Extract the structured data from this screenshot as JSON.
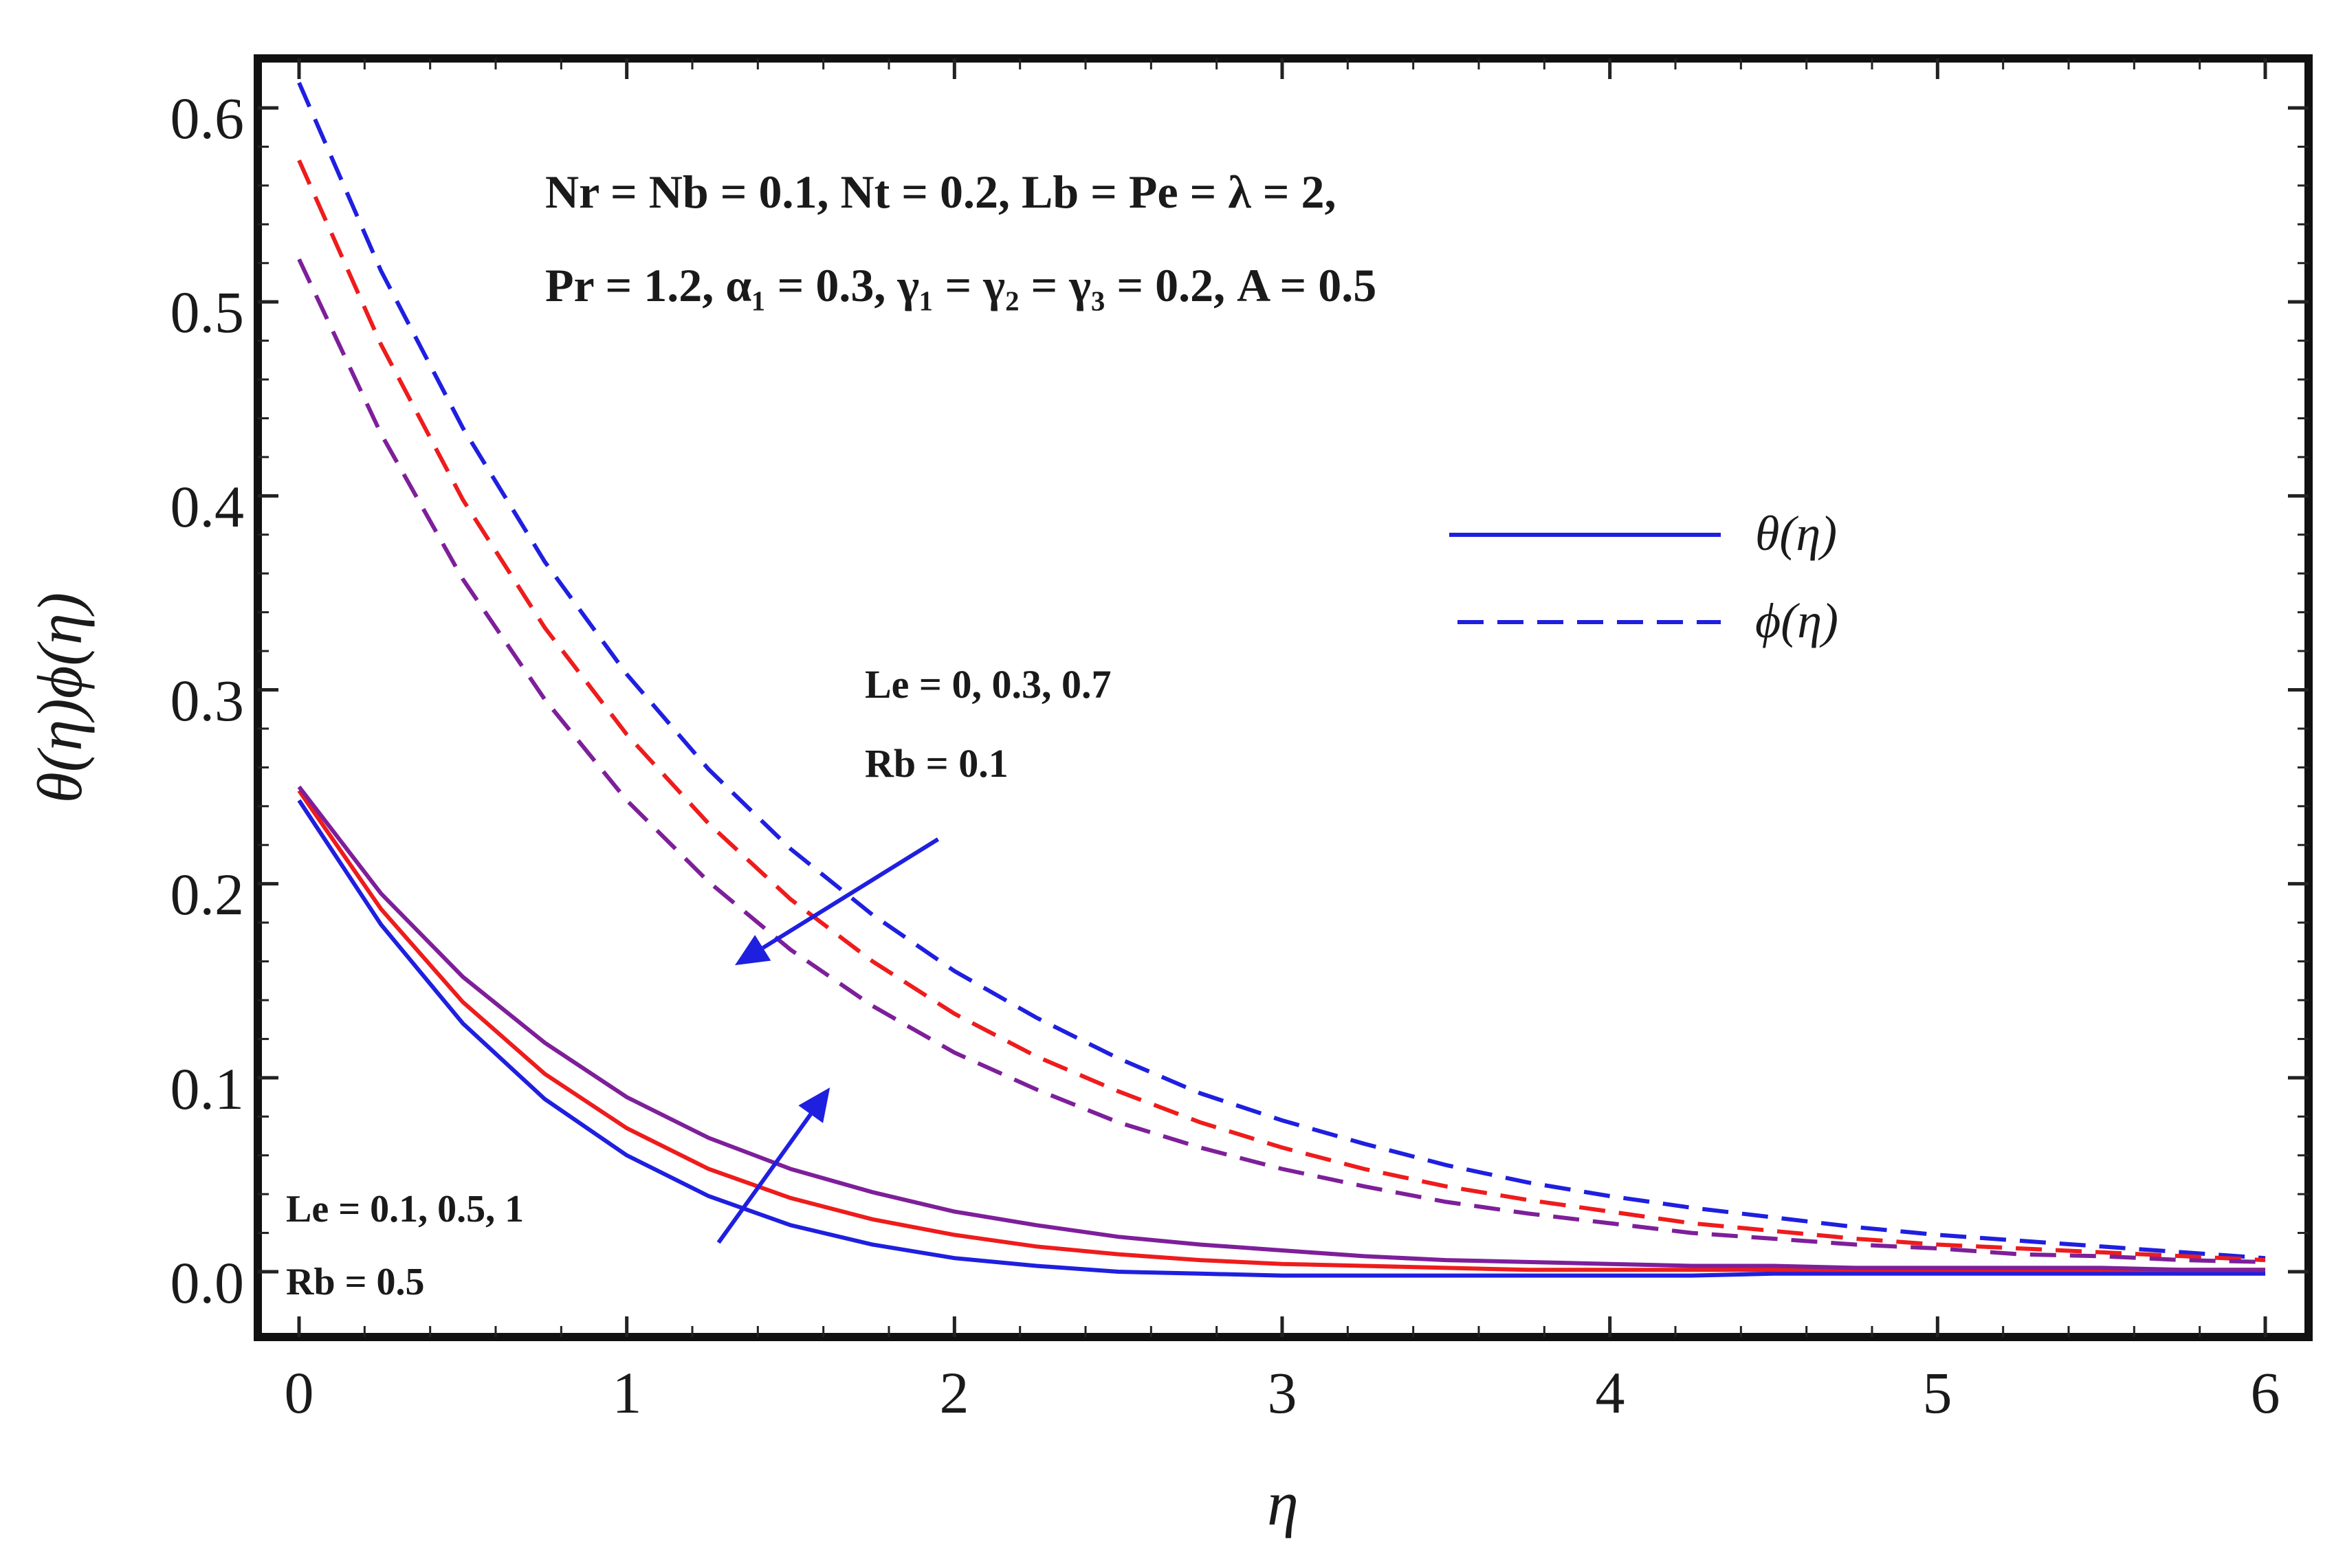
{
  "chart_data": {
    "type": "line",
    "title": "",
    "xlabel": "η",
    "ylabel": "θ(η)ϕ(η)",
    "xlim": [
      0,
      6
    ],
    "ylim": [
      -0.017,
      0.633
    ],
    "xticks": [
      0,
      1,
      2,
      3,
      4,
      5,
      6
    ],
    "xtick_labels": [
      "0",
      "1",
      "2",
      "3",
      "4",
      "5",
      "6"
    ],
    "yticks": [
      0.0,
      0.1,
      0.2,
      0.3,
      0.4,
      0.5,
      0.6
    ],
    "ytick_labels": [
      "0.0",
      "0.1",
      "0.2",
      "0.3",
      "0.4",
      "0.5",
      "0.6"
    ],
    "grid": false,
    "legend_position": "top-right",
    "legend": [
      {
        "label": "θ(η)",
        "style": "solid",
        "color": "#1f1fe0"
      },
      {
        "label": "ϕ(η)",
        "style": "dashed",
        "color": "#1f1fe0"
      }
    ],
    "x": [
      0,
      0.25,
      0.5,
      0.75,
      1,
      1.25,
      1.5,
      1.75,
      2,
      2.25,
      2.5,
      2.75,
      3,
      3.25,
      3.5,
      3.75,
      4,
      4.25,
      4.5,
      4.75,
      5,
      5.25,
      5.5,
      5.75,
      6
    ],
    "series": [
      {
        "name": "θ(η), Le = 0.1, Rb = 0.5",
        "group": "theta",
        "style": "solid",
        "color": "#1f1fe0",
        "values": [
          0.243,
          0.179,
          0.128,
          0.089,
          0.06,
          0.039,
          0.024,
          0.014,
          0.007,
          0.003,
          0.0,
          -0.001,
          -0.002,
          -0.002,
          -0.002,
          -0.002,
          -0.002,
          -0.002,
          -0.001,
          -0.001,
          -0.001,
          -0.001,
          -0.001,
          -0.001,
          -0.001
        ]
      },
      {
        "name": "θ(η), Le = 0.5, Rb = 0.5",
        "group": "theta",
        "style": "solid",
        "color": "#ee1c1c",
        "values": [
          0.248,
          0.187,
          0.139,
          0.102,
          0.074,
          0.053,
          0.038,
          0.027,
          0.019,
          0.013,
          0.009,
          0.006,
          0.004,
          0.003,
          0.002,
          0.001,
          0.001,
          0.001,
          0.001,
          0.001,
          0.001,
          0.001,
          0.001,
          0.001,
          0.001
        ]
      },
      {
        "name": "θ(η), Le = 1, Rb = 0.5",
        "group": "theta",
        "style": "solid",
        "color": "#7e1f9a",
        "values": [
          0.25,
          0.195,
          0.152,
          0.118,
          0.09,
          0.069,
          0.053,
          0.041,
          0.031,
          0.024,
          0.018,
          0.014,
          0.011,
          0.008,
          0.006,
          0.005,
          0.004,
          0.003,
          0.003,
          0.002,
          0.002,
          0.002,
          0.002,
          0.001,
          0.001
        ]
      },
      {
        "name": "ϕ(η), Le = 0, Rb = 0.1",
        "group": "phi",
        "style": "dashed",
        "color": "#1f1fe0",
        "values": [
          0.613,
          0.516,
          0.435,
          0.366,
          0.308,
          0.259,
          0.218,
          0.184,
          0.155,
          0.131,
          0.11,
          0.092,
          0.078,
          0.066,
          0.055,
          0.046,
          0.039,
          0.033,
          0.028,
          0.023,
          0.019,
          0.016,
          0.013,
          0.01,
          0.007
        ]
      },
      {
        "name": "ϕ(η), Le = 0.3, Rb = 0.1",
        "group": "phi",
        "style": "dashed",
        "color": "#ee1c1c",
        "values": [
          0.573,
          0.478,
          0.398,
          0.332,
          0.277,
          0.231,
          0.192,
          0.16,
          0.133,
          0.111,
          0.093,
          0.077,
          0.064,
          0.053,
          0.044,
          0.037,
          0.031,
          0.025,
          0.021,
          0.017,
          0.014,
          0.012,
          0.01,
          0.008,
          0.006
        ]
      },
      {
        "name": "ϕ(η), Le = 0.7, Rb = 0.1",
        "group": "phi",
        "style": "dashed",
        "color": "#7e1f9a",
        "values": [
          0.522,
          0.432,
          0.357,
          0.295,
          0.243,
          0.201,
          0.166,
          0.137,
          0.113,
          0.094,
          0.077,
          0.064,
          0.053,
          0.044,
          0.036,
          0.03,
          0.025,
          0.02,
          0.017,
          0.014,
          0.012,
          0.009,
          0.008,
          0.006,
          0.005
        ]
      }
    ],
    "annotations": {
      "params_line1": "Nr = Nb = 0.1, Nt = 0.2, Lb = Pe = λ = 2,",
      "params_line2": "Pr = 1.2, α₁ = 0.3, γ₁ = γ₂ = γ₃ = 0.2, A = 0.5",
      "phi_case_line1": "Le = 0, 0.3, 0.7",
      "phi_case_line2": "Rb = 0.1",
      "theta_case_line1": "Le = 0.1, 0.5, 1",
      "theta_case_line2": "Rb = 0.5"
    },
    "arrows": [
      {
        "name": "phi-trend-arrow",
        "from": [
          1.95,
          0.223
        ],
        "to": [
          1.33,
          0.158
        ],
        "color": "#1f1fe0"
      },
      {
        "name": "theta-trend-arrow",
        "from": [
          1.28,
          0.015
        ],
        "to": [
          1.62,
          0.095
        ],
        "color": "#1f1fe0"
      }
    ]
  }
}
